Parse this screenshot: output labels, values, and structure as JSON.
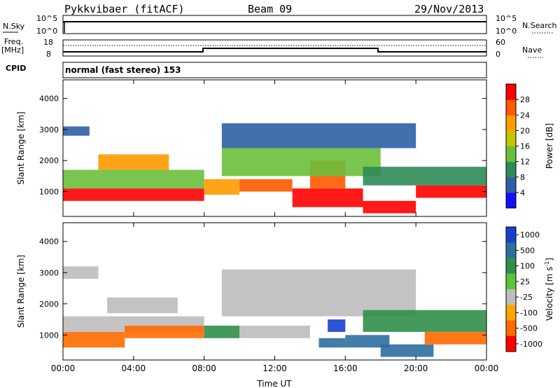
{
  "header": {
    "radar": "Pykkvibaer (fitACF)",
    "beam": "Beam 09",
    "date": "29/Nov/2013"
  },
  "top_panels": {
    "nsky_label": "N.Sky",
    "nsky_ticks": [
      "10^5",
      "10^0"
    ],
    "nsearch_label": "N.Search",
    "nsearch_ticks": [
      "10^5",
      "10^0"
    ],
    "freq_label": "Freq.",
    "freq_unit": "[MHz]",
    "freq_ticks": [
      "18",
      "8"
    ],
    "nave_label": "Nave",
    "nave_ticks": [
      "60",
      "0"
    ],
    "cpid_label": "CPID",
    "cpid_value": "normal (fast stereo) 153"
  },
  "chart_data": [
    {
      "type": "heatmap",
      "name": "power-panel",
      "ylabel": "Slant Range [km]",
      "xlabel": "",
      "xlim": [
        0,
        24
      ],
      "ylim": [
        200,
        4600
      ],
      "yticks": [
        "4000",
        "3000",
        "2000",
        "1000"
      ],
      "ytick_values": [
        4000,
        3000,
        2000,
        1000
      ],
      "colorbar": {
        "label": "Power [dB]",
        "ticks": [
          "28",
          "24",
          "20",
          "16",
          "12",
          "8",
          "4"
        ],
        "tick_values": [
          28,
          24,
          20,
          16,
          12,
          8,
          4
        ],
        "range": [
          0,
          32
        ],
        "colors": [
          "#1010ff",
          "#2f5fa6",
          "#2e8b57",
          "#6abf3b",
          "#c4c400",
          "#ff9a00",
          "#ff5a00",
          "#ff0000"
        ]
      },
      "regions": [
        {
          "t0": 0.0,
          "t1": 8.0,
          "r0": 700,
          "r1": 1100,
          "level": 28
        },
        {
          "t0": 0.0,
          "t1": 8.0,
          "r0": 1100,
          "r1": 1700,
          "level": 12
        },
        {
          "t0": 2.0,
          "t1": 6.0,
          "r0": 1700,
          "r1": 2200,
          "level": 20
        },
        {
          "t0": 0.0,
          "t1": 1.5,
          "r0": 2800,
          "r1": 3100,
          "level": 6
        },
        {
          "t0": 8.0,
          "t1": 10.0,
          "r0": 900,
          "r1": 1400,
          "level": 20
        },
        {
          "t0": 10.0,
          "t1": 13.0,
          "r0": 1000,
          "r1": 1400,
          "level": 26
        },
        {
          "t0": 13.0,
          "t1": 17.0,
          "r0": 500,
          "r1": 1100,
          "level": 28
        },
        {
          "t0": 14.0,
          "t1": 16.0,
          "r0": 1100,
          "r1": 2000,
          "level": 24
        },
        {
          "t0": 17.0,
          "t1": 20.0,
          "r0": 300,
          "r1": 700,
          "level": 28
        },
        {
          "t0": 20.0,
          "t1": 24.0,
          "r0": 800,
          "r1": 1200,
          "level": 28
        },
        {
          "t0": 9.0,
          "t1": 18.0,
          "r0": 1500,
          "r1": 2400,
          "level": 12
        },
        {
          "t0": 9.0,
          "t1": 20.0,
          "r0": 2400,
          "r1": 3200,
          "level": 6
        },
        {
          "t0": 17.0,
          "t1": 24.0,
          "r0": 1200,
          "r1": 1800,
          "level": 8
        }
      ]
    },
    {
      "type": "heatmap",
      "name": "velocity-panel",
      "ylabel": "Slant Range [km]",
      "xlabel": "Time UT",
      "xlim": [
        0,
        24
      ],
      "ylim": [
        200,
        4600
      ],
      "yticks": [
        "4000",
        "3000",
        "2000",
        "1000"
      ],
      "ytick_values": [
        4000,
        3000,
        2000,
        1000
      ],
      "xticks": [
        "00:00",
        "04:00",
        "08:00",
        "12:00",
        "16:00",
        "20:00",
        "00:00"
      ],
      "xtick_values": [
        0,
        4,
        8,
        12,
        16,
        20,
        24
      ],
      "colorbar": {
        "label": "Velocity [m s",
        "label_sup": "-1",
        "label_end": "]",
        "ticks": [
          "1000",
          "500",
          "100",
          "25",
          "-25",
          "-100",
          "-500",
          "-1000"
        ],
        "colors": [
          "#1a3fd0",
          "#2e6fa0",
          "#2f8f4a",
          "#5cc33a",
          "#bdbdbd",
          "#ffa500",
          "#ff6a00",
          "#ff0000"
        ]
      },
      "regions": [
        {
          "t0": 0.0,
          "t1": 3.5,
          "r0": 600,
          "r1": 1100,
          "vel": -100
        },
        {
          "t0": 0.0,
          "t1": 8.0,
          "r0": 1100,
          "r1": 1600,
          "vel": 0
        },
        {
          "t0": 3.5,
          "t1": 8.0,
          "r0": 900,
          "r1": 1300,
          "vel": -100
        },
        {
          "t0": 0.0,
          "t1": 2.0,
          "r0": 2800,
          "r1": 3200,
          "vel": 0
        },
        {
          "t0": 2.5,
          "t1": 6.5,
          "r0": 1700,
          "r1": 2200,
          "vel": 0
        },
        {
          "t0": 8.0,
          "t1": 10.0,
          "r0": 900,
          "r1": 1300,
          "vel": 100
        },
        {
          "t0": 9.0,
          "t1": 20.0,
          "r0": 1600,
          "r1": 3100,
          "vel": 0
        },
        {
          "t0": 10.0,
          "t1": 14.0,
          "r0": 900,
          "r1": 1300,
          "vel": 0
        },
        {
          "t0": 14.5,
          "t1": 16.0,
          "r0": 600,
          "r1": 900,
          "vel": 500
        },
        {
          "t0": 15.0,
          "t1": 16.0,
          "r0": 1100,
          "r1": 1500,
          "vel": 1000
        },
        {
          "t0": 16.0,
          "t1": 18.5,
          "r0": 600,
          "r1": 1000,
          "vel": 500
        },
        {
          "t0": 18.0,
          "t1": 21.0,
          "r0": 300,
          "r1": 700,
          "vel": 500
        },
        {
          "t0": 20.5,
          "t1": 24.0,
          "r0": 700,
          "r1": 1100,
          "vel": -100
        },
        {
          "t0": 17.0,
          "t1": 24.0,
          "r0": 1100,
          "r1": 1800,
          "vel": 100
        }
      ]
    }
  ]
}
